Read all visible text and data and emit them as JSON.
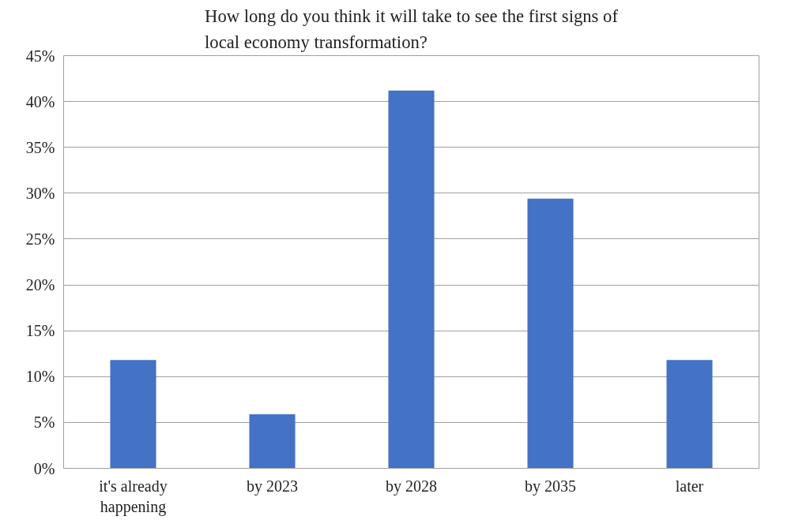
{
  "chart_data": {
    "type": "bar",
    "title": "How long do you think it will take to see the first signs of local economy transformation?",
    "categories": [
      "it's already happening",
      "by 2023",
      "by 2028",
      "by 2035",
      "later"
    ],
    "values": [
      11.8,
      5.9,
      41.2,
      29.4,
      11.8
    ],
    "color": "#4472c4",
    "ylim": [
      0,
      45
    ],
    "yticks": [
      {
        "value": 0,
        "label": "0%"
      },
      {
        "value": 5,
        "label": "5%"
      },
      {
        "value": 10,
        "label": "10%"
      },
      {
        "value": 15,
        "label": "15%"
      },
      {
        "value": 20,
        "label": "20%"
      },
      {
        "value": 25,
        "label": "25%"
      },
      {
        "value": 30,
        "label": "30%"
      },
      {
        "value": 35,
        "label": "35%"
      },
      {
        "value": 40,
        "label": "40%"
      },
      {
        "value": 45,
        "label": "45%"
      }
    ],
    "grid": "y"
  }
}
